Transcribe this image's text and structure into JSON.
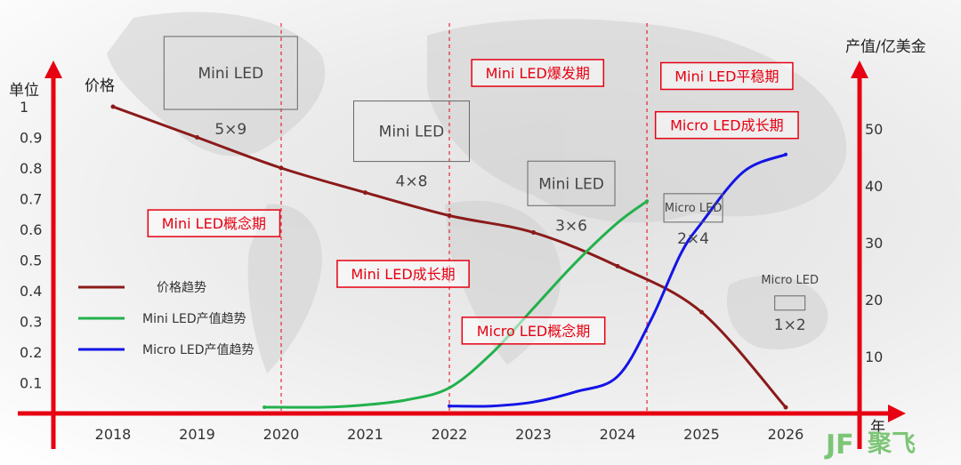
{
  "chart_data": {
    "type": "line",
    "x_categories": [
      "2018",
      "2019",
      "2020",
      "2021",
      "2022",
      "2023",
      "2024",
      "2025",
      "2026"
    ],
    "y_left": {
      "label": "单位",
      "ticks": [
        "1",
        "0.9",
        "0.8",
        "0.7",
        "0.6",
        "0.5",
        "0.4",
        "0.3",
        "0.2",
        "0.1"
      ],
      "range": [
        0,
        1.0
      ]
    },
    "y_right": {
      "label": "产值/亿美金",
      "ticks": [
        "50",
        "40",
        "30",
        "20",
        "10"
      ],
      "range": [
        0,
        55
      ]
    },
    "x_axis_label": "年",
    "price_label": "价格",
    "series": [
      {
        "name": "价格趋势",
        "color": "#8b1a1a",
        "axis": "left",
        "points": [
          [
            2018,
            1.0
          ],
          [
            2019,
            0.9
          ],
          [
            2020,
            0.8
          ],
          [
            2021,
            0.72
          ],
          [
            2022,
            0.645
          ],
          [
            2023,
            0.59
          ],
          [
            2024,
            0.48
          ],
          [
            2025,
            0.33
          ],
          [
            2026,
            0.02
          ]
        ]
      },
      {
        "name": "Mini LED产值趋势",
        "color": "#22b14c",
        "axis": "right",
        "points": [
          [
            2019.8,
            1.1
          ],
          [
            2020.5,
            1.1
          ],
          [
            2021,
            1.5
          ],
          [
            2021.5,
            2.4
          ],
          [
            2022,
            4.5
          ],
          [
            2022.5,
            10.5
          ],
          [
            2023,
            18.5
          ],
          [
            2023.5,
            26.5
          ],
          [
            2024,
            33.5
          ],
          [
            2024.35,
            37.3
          ]
        ]
      },
      {
        "name": "Micro LED产值趋势",
        "color": "#1414e6",
        "axis": "right",
        "points": [
          [
            2022,
            1.3
          ],
          [
            2022.5,
            1.3
          ],
          [
            2023,
            2.0
          ],
          [
            2023.5,
            3.8
          ],
          [
            2024,
            6.5
          ],
          [
            2024.4,
            16.5
          ],
          [
            2024.75,
            28.0
          ],
          [
            2025,
            33.5
          ],
          [
            2025.5,
            42.5
          ],
          [
            2026,
            45.5
          ]
        ]
      }
    ],
    "grid": false,
    "legend_position": "left"
  },
  "phases": [
    {
      "label": "Mini LED概念期",
      "year": 2019.2,
      "y": 0.62
    },
    {
      "label": "Mini LED成长期",
      "year": 2021.45,
      "y": 0.455
    },
    {
      "label": "Micro LED概念期",
      "year": 2023.0,
      "y": 0.27
    },
    {
      "label": "Mini LED爆发期",
      "year": 2023.05,
      "y": 1.11
    },
    {
      "label": "Mini LED平稳期",
      "year": 2025.3,
      "y": 1.1
    },
    {
      "label": "Micro LED成长期",
      "year": 2025.3,
      "y": 0.94
    }
  ],
  "phase_dividers": [
    2020,
    2022,
    2024.35
  ],
  "chips": [
    {
      "label": "Mini LED",
      "size": "5×9",
      "year": 2019.4,
      "y": 1.11
    },
    {
      "label": "Mini LED",
      "size": "4×8",
      "year": 2021.55,
      "y": 0.92
    },
    {
      "label": "Mini LED",
      "size": "3×6",
      "year": 2023.45,
      "y": 0.75
    },
    {
      "label": "Micro LED",
      "size": "2×4",
      "year": 2024.9,
      "y": 0.67
    },
    {
      "label": "Micro LED",
      "size": "1×2",
      "year": 2026.05,
      "y": 0.36
    }
  ],
  "logo": {
    "mark": "JF",
    "name": "聚飞",
    "color": "#7cc576"
  },
  "colors": {
    "axis": "#e60012",
    "price": "#8b1a1a",
    "mini": "#22b14c",
    "micro": "#1414e6"
  }
}
